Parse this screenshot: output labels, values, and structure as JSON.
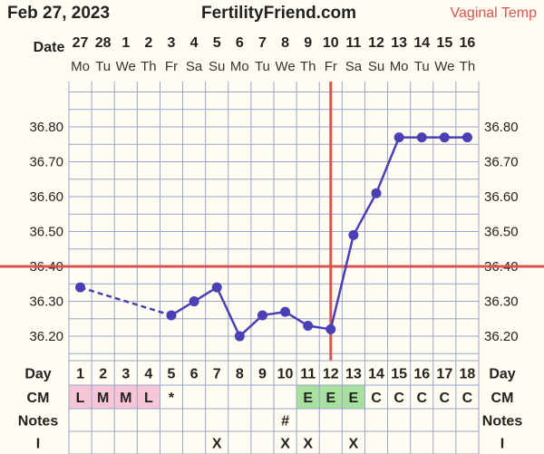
{
  "header": {
    "date": "Feb 27, 2023",
    "site": "FertilityFriend.com",
    "mode": "Vaginal Temp"
  },
  "labels": {
    "date_row": "Date",
    "day_row": "Day",
    "cm_row": "CM",
    "notes_row": "Notes",
    "i_row": "I"
  },
  "colors": {
    "grid": "#9aa3c9",
    "line": "#4b3fb5",
    "coverline": "#d9534f",
    "background": "#fffdf2",
    "cm_menstruation": "#f6c6d6",
    "cm_egg_white": "#a8e0a0"
  },
  "chart_data": {
    "type": "line",
    "dates": [
      "27",
      "28",
      "1",
      "2",
      "3",
      "4",
      "5",
      "6",
      "7",
      "8",
      "9",
      "10",
      "11",
      "12",
      "13",
      "14",
      "15",
      "16"
    ],
    "weekdays": [
      "Mo",
      "Tu",
      "We",
      "Th",
      "Fr",
      "Sa",
      "Su",
      "Mo",
      "Tu",
      "We",
      "Th",
      "Fr",
      "Sa",
      "Su",
      "Mo",
      "Tu",
      "We",
      "Th"
    ],
    "date_year": "2023",
    "cycle_days": [
      "1",
      "2",
      "3",
      "4",
      "5",
      "6",
      "7",
      "8",
      "9",
      "10",
      "11",
      "12",
      "13",
      "14",
      "15",
      "16",
      "17",
      "18"
    ],
    "temperatures": [
      36.34,
      null,
      null,
      null,
      36.26,
      36.3,
      36.34,
      36.2,
      36.26,
      36.27,
      36.23,
      36.22,
      36.49,
      36.61,
      36.77,
      36.77,
      36.77,
      36.77
    ],
    "dashed_segments": [
      [
        0,
        4
      ]
    ],
    "ylim": [
      36.13,
      36.93
    ],
    "yticks": [
      "36.80",
      "36.70",
      "36.60",
      "36.50",
      "36.40",
      "36.30",
      "36.20"
    ],
    "coverline": 36.4,
    "ovulation_day_index": 11,
    "cm": [
      "L",
      "M",
      "M",
      "L",
      "*",
      "",
      "",
      "",
      "",
      "",
      "E",
      "E",
      "E",
      "C",
      "C",
      "C",
      "C",
      "C"
    ],
    "notes": [
      "",
      "",
      "",
      "",
      "",
      "",
      "",
      "",
      "",
      "#",
      "",
      "",
      "",
      "",
      "",
      "",
      "",
      ""
    ],
    "intercourse": [
      "",
      "",
      "",
      "",
      "",
      "",
      "X",
      "",
      "",
      "X",
      "X",
      "",
      "X",
      "",
      "",
      "",
      "",
      ""
    ],
    "grid": true
  }
}
